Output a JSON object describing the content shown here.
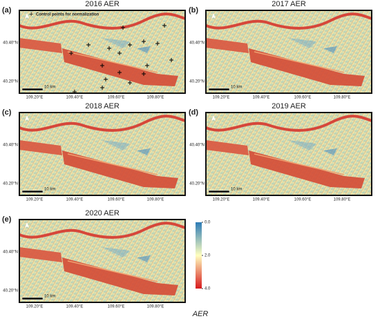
{
  "legend": {
    "marker": "+",
    "text": "Control points for normalization"
  },
  "panels": [
    {
      "label": "(a)",
      "title": "2016 AER",
      "lat_labels": [
        "40.40°N",
        "40.20°N"
      ],
      "lon_labels": [
        "109.20°E",
        "109.40°E",
        "109.60°E",
        "109.80°E"
      ],
      "scale_label": "10 km"
    },
    {
      "label": "(b)",
      "title": "2017 AER",
      "lat_labels": [
        "40.40°N",
        "40.20°N"
      ],
      "lon_labels": [
        "109.20°E",
        "109.40°E",
        "109.60°E",
        "109.80°E"
      ],
      "scale_label": "10 km"
    },
    {
      "label": "(c)",
      "title": "2018 AER",
      "lat_labels": [
        "40.40°N",
        "40.20°N"
      ],
      "lon_labels": [
        "109.20°E",
        "109.40°E",
        "109.60°E",
        "109.80°E"
      ],
      "scale_label": "10 km"
    },
    {
      "label": "(d)",
      "title": "2019 AER",
      "lat_labels": [
        "40.40°N",
        "40.20°N"
      ],
      "lon_labels": [
        "109.20°E",
        "109.40°E",
        "109.60°E",
        "109.80°E"
      ],
      "scale_label": "10 km"
    },
    {
      "label": "(e)",
      "title": "2020 AER",
      "lat_labels": [
        "40.40°N",
        "40.20°N"
      ],
      "lon_labels": [
        "109.20°E",
        "109.40°E",
        "109.60°E",
        "109.80°E"
      ],
      "scale_label": "10 km"
    }
  ],
  "colorbar": {
    "title": "AER",
    "range": [
      0,
      4
    ],
    "ticks": [
      {
        "value": 0,
        "label": "0.0"
      },
      {
        "value": 2,
        "label": "2.0"
      },
      {
        "value": 4,
        "label": "4.0"
      }
    ],
    "colors": [
      "#2c7bb6",
      "#ffffbf",
      "#d7191c"
    ]
  }
}
